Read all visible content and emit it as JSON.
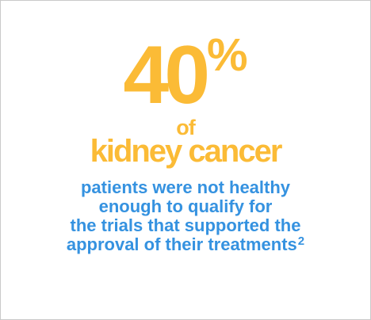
{
  "stat": {
    "number": "40",
    "unit": "%",
    "connector": "of",
    "subject": "kidney cancer"
  },
  "description": {
    "lines": [
      "patients were not healthy",
      "enough to qualify for",
      "the trials that supported the",
      "approval of their treatments"
    ],
    "footnote": "2"
  },
  "colors": {
    "accent_yellow": "#fbbb36",
    "accent_blue": "#3592e0",
    "border": "#c9c9c9"
  }
}
